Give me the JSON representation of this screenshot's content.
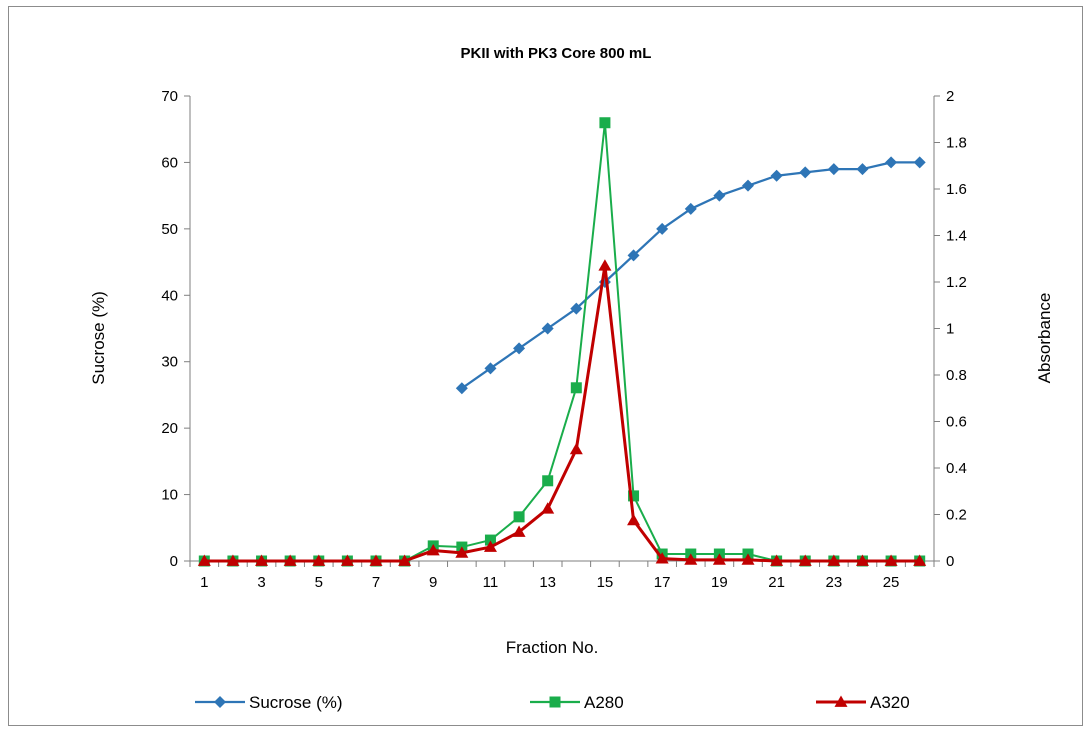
{
  "chart_data": {
    "type": "line",
    "title": "PKII with PK3 Core 800 mL",
    "xlabel": "Fraction No.",
    "ylabel": "Sucrose (%)",
    "y2label": "Absorbance",
    "x": [
      1,
      2,
      3,
      4,
      5,
      6,
      7,
      8,
      9,
      10,
      11,
      12,
      13,
      14,
      15,
      16,
      17,
      18,
      19,
      20,
      21,
      22,
      23,
      24,
      25,
      26
    ],
    "xticks": [
      1,
      3,
      5,
      7,
      9,
      11,
      13,
      15,
      17,
      19,
      21,
      23,
      25
    ],
    "ylim": [
      0,
      70
    ],
    "yticks": [
      0,
      10,
      20,
      30,
      40,
      50,
      60,
      70
    ],
    "y2lim": [
      0,
      2
    ],
    "y2ticks": [
      "0",
      "0.2",
      "0.4",
      "0.6",
      "0.8",
      "1",
      "1.2",
      "1.4",
      "1.6",
      "1.8",
      "2"
    ],
    "grid": false,
    "legend_position": "bottom",
    "series": [
      {
        "name": "Sucrose (%)",
        "axis": "left",
        "color": "#2e75b6",
        "marker": "diamond",
        "x": [
          10,
          11,
          12,
          13,
          14,
          15,
          16,
          17,
          18,
          19,
          20,
          21,
          22,
          23,
          24,
          25,
          26
        ],
        "values": [
          26,
          29,
          32,
          35,
          38,
          42,
          46,
          50,
          53,
          55,
          56.5,
          58,
          58.5,
          59,
          59,
          60,
          60
        ]
      },
      {
        "name": "A280",
        "axis": "right",
        "color": "#1aad4b",
        "marker": "square",
        "x": [
          1,
          2,
          3,
          4,
          5,
          6,
          7,
          8,
          9,
          10,
          11,
          12,
          13,
          14,
          15,
          16,
          17,
          18,
          19,
          20,
          21,
          22,
          23,
          24,
          25,
          26
        ],
        "values": [
          0,
          0,
          0,
          0,
          0,
          0,
          0,
          0,
          0.065,
          0.06,
          0.09,
          0.19,
          0.345,
          0.745,
          1.885,
          0.28,
          0.03,
          0.03,
          0.03,
          0.03,
          0,
          0,
          0,
          0,
          0,
          0
        ]
      },
      {
        "name": "A320",
        "axis": "right",
        "color": "#c00000",
        "marker": "triangle",
        "x": [
          1,
          2,
          3,
          4,
          5,
          6,
          7,
          8,
          9,
          10,
          11,
          12,
          13,
          14,
          15,
          16,
          17,
          18,
          19,
          20,
          21,
          22,
          23,
          24,
          25,
          26
        ],
        "values": [
          0,
          0,
          0,
          0,
          0,
          0,
          0,
          0,
          0.045,
          0.035,
          0.06,
          0.125,
          0.225,
          0.48,
          1.27,
          0.175,
          0.01,
          0.005,
          0.005,
          0.005,
          0,
          0,
          0,
          0,
          0,
          0
        ]
      }
    ]
  }
}
